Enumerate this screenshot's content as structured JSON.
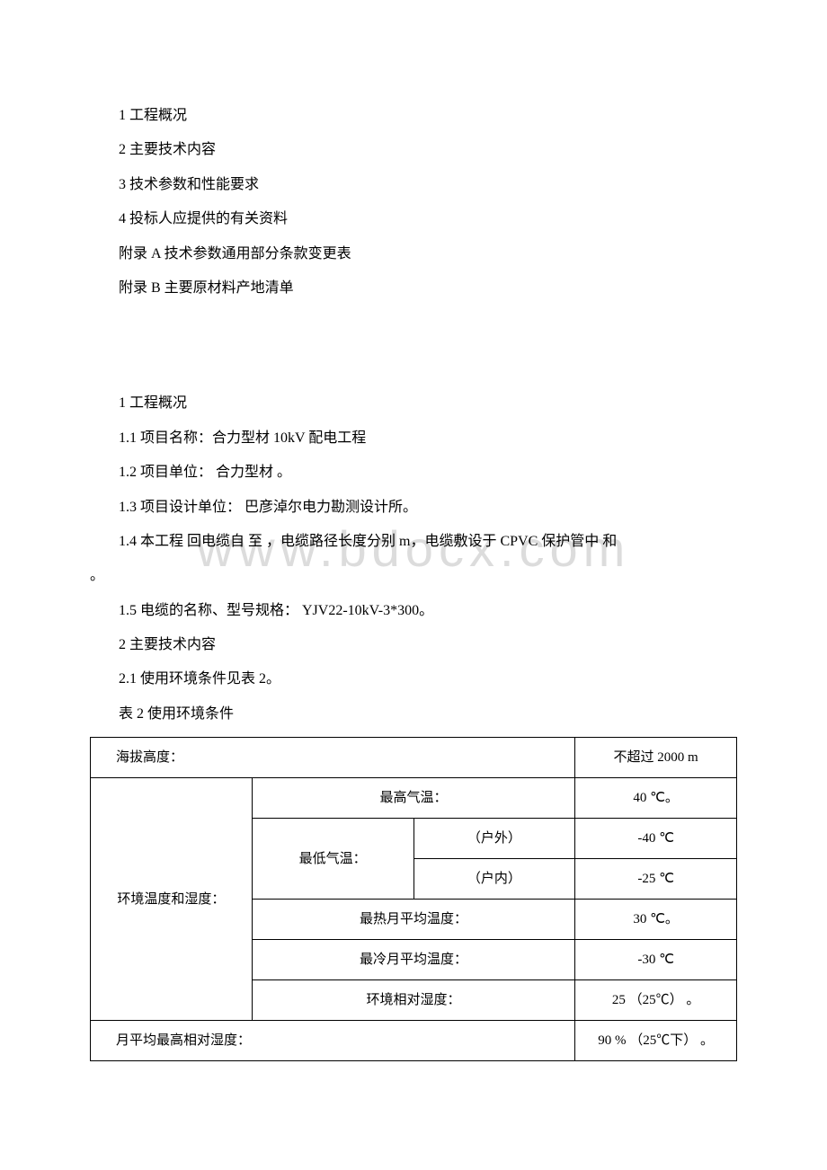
{
  "toc": {
    "item1": "1 工程概况",
    "item2": "2 主要技术内容",
    "item3": "3 技术参数和性能要求",
    "item4": "4 投标人应提供的有关资料",
    "item5": "附录 A 技术参数通用部分条款变更表",
    "item6": "附录 B 主要原材料产地清单"
  },
  "body": {
    "h1": "1 工程概况",
    "p1_1": "1.1 项目名称：合力型材 10kV 配电工程",
    "p1_2": "1.2 项目单位： 合力型材 。",
    "p1_3": "1.3 项目设计单位： 巴彦淖尔电力勘测设计所。",
    "p1_4_line1": "1.4 本工程 回电缆自 至 ，电缆路径长度分别 m，电缆敷设于 CPVC 保护管中   和",
    "p1_4_line2": "。",
    "p1_5": "1.5 电缆的名称、型号规格： YJV22-10kV-3*300。",
    "h2": "2 主要技术内容",
    "p2_1": "2.1 使用环境条件见表 2。",
    "table_caption": "表 2 使用环境条件"
  },
  "table": {
    "r1c1": "海拔高度：",
    "r1c4": "不超过 2000 m",
    "r2c1": "环境温度和湿度：",
    "r2c2": "最高气温：",
    "r2c4": "40 ℃。",
    "r3c2": "最低气温：",
    "r3c3": "（户外）",
    "r3c4": "-40 ℃",
    "r4c3": "（户内）",
    "r4c4": "-25 ℃",
    "r5c2": "最热月平均温度：",
    "r5c4": "30 ℃。",
    "r6c2": "最冷月平均温度：",
    "r6c4": "-30 ℃",
    "r7c2": "环境相对湿度：",
    "r7c4": "25 （25℃） 。",
    "r8c1": "月平均最高相对湿度：",
    "r8c4": "90 % （25℃下） 。"
  },
  "watermark": "www.bdocx.com"
}
